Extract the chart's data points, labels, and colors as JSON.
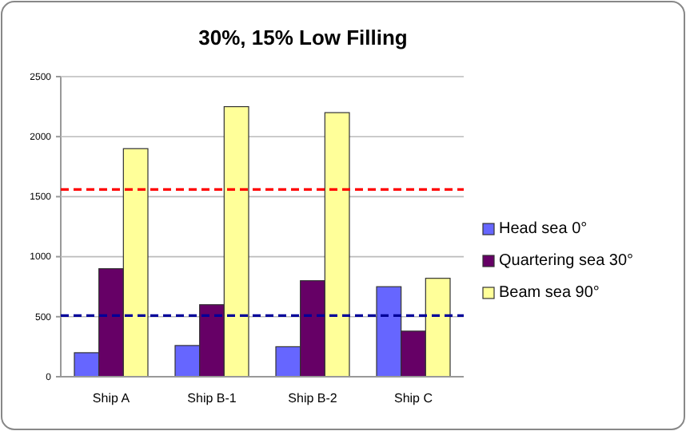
{
  "chart_data": {
    "type": "bar",
    "title": "30%, 15% Low Filling",
    "categories": [
      "Ship A",
      "Ship B-1",
      "Ship B-2",
      "Ship C"
    ],
    "series": [
      {
        "name": "Head sea 0°",
        "color": "#6666ff",
        "values": [
          200,
          260,
          250,
          750
        ]
      },
      {
        "name": "Quartering sea 30°",
        "color": "#660066",
        "values": [
          900,
          600,
          800,
          380
        ]
      },
      {
        "name": "Beam sea 90°",
        "color": "#ffff99",
        "values": [
          1900,
          2250,
          2200,
          820
        ]
      }
    ],
    "ylim": [
      0,
      2500
    ],
    "yticks": [
      0,
      500,
      1000,
      1500,
      2000,
      2500
    ],
    "grid": "y",
    "legend": "right",
    "ref_lines": [
      {
        "axis": "y",
        "value": 1560,
        "color": "#ff0000",
        "line_style": "dashed"
      },
      {
        "axis": "y",
        "value": 510,
        "color": "#000099",
        "line_style": "dashed"
      }
    ]
  }
}
